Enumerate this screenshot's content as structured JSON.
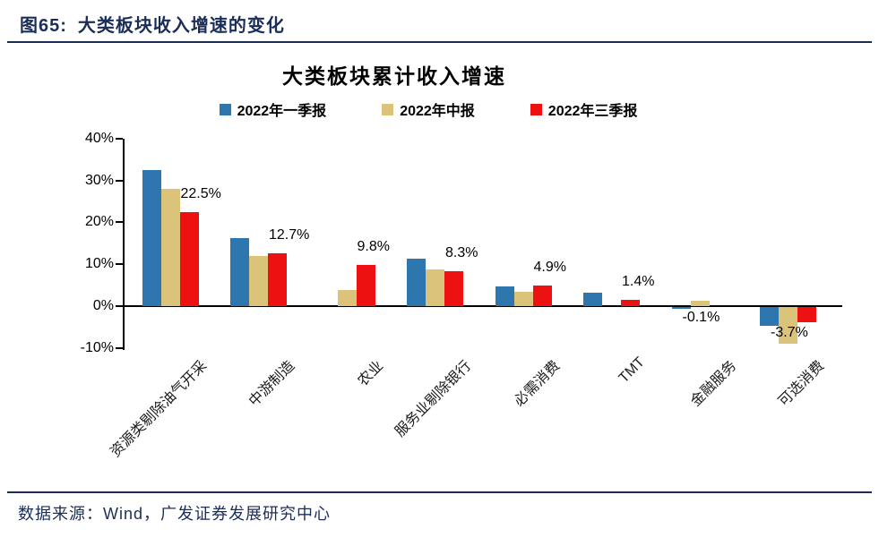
{
  "header": {
    "figure_label": "图65:",
    "figure_title": "大类板块收入增速的变化"
  },
  "chart_data": {
    "type": "bar",
    "title": "大类板块累计收入增速",
    "categories": [
      "资源类剔除油气开采",
      "中游制造",
      "农业",
      "服务业剔除银行",
      "必需消费",
      "TMT",
      "金融服务",
      "可选消费"
    ],
    "series": [
      {
        "name": "2022年一季报",
        "color": "#2E76AE",
        "values": [
          32.5,
          16.3,
          0,
          11.4,
          4.7,
          3.2,
          -0.5,
          -4.5
        ]
      },
      {
        "name": "2022年中报",
        "color": "#DBC379",
        "values": [
          27.9,
          11.9,
          3.9,
          8.8,
          3.4,
          0,
          1.2,
          -8.7
        ]
      },
      {
        "name": "2022年三季报",
        "color": "#EE1111",
        "values": [
          22.5,
          12.7,
          9.8,
          8.3,
          4.9,
          1.4,
          -0.1,
          -3.7
        ]
      }
    ],
    "data_labels": {
      "labeled_series": "2022年三季报",
      "values": [
        "22.5%",
        "12.7%",
        "9.8%",
        "8.3%",
        "4.9%",
        "1.4%",
        "-0.1%",
        "-3.7%"
      ]
    },
    "y_ticks": [
      {
        "label": "40%",
        "value": 40
      },
      {
        "label": "30%",
        "value": 30
      },
      {
        "label": "20%",
        "value": 20
      },
      {
        "label": "10%",
        "value": 10
      },
      {
        "label": "0%",
        "value": 0
      },
      {
        "label": "-10%",
        "value": -10
      }
    ],
    "ylim": [
      -10,
      40
    ],
    "grid": false,
    "legend_position": "top"
  },
  "theme": {
    "heading_color": "#1B2E5A",
    "axis_color": "#000000"
  },
  "footer": {
    "source": "数据来源：Wind，广发证券发展研究中心"
  }
}
